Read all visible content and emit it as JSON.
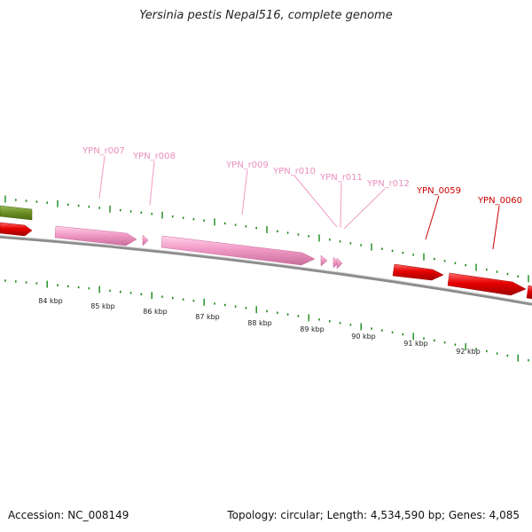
{
  "title": "Yersinia pestis Nepal516, complete genome",
  "footer": {
    "accession": "Accession: NC_008149",
    "stats": "Topology: circular; Length: 4,534,590 bp; Genes: 4,085"
  },
  "colors": {
    "rRNA": "#f29ac6",
    "rRNA_label": "#e98fbd",
    "gene": "#e60000",
    "gene_label": "#cc0000",
    "other": "#6b8e23",
    "tick": "#1a8a1a",
    "backbone": "#8c8c8c",
    "kbp_text": "#222222"
  },
  "scale": {
    "unit": "kbp",
    "labels": [
      "84 kbp",
      "85 kbp",
      "86 kbp",
      "87 kbp",
      "88 kbp",
      "89 kbp",
      "90 kbp",
      "91 kbp",
      "92 kbp"
    ]
  },
  "features": [
    {
      "kind": "other",
      "strand": "+"
    },
    {
      "kind": "gene",
      "strand": "+"
    },
    {
      "kind": "rRNA",
      "name": "YPN_r007",
      "strand": "+"
    },
    {
      "kind": "rRNA",
      "name": "YPN_r008",
      "strand": "+"
    },
    {
      "kind": "rRNA",
      "name": "YPN_r009",
      "strand": "+"
    },
    {
      "kind": "rRNA",
      "name": "YPN_r010",
      "strand": "+"
    },
    {
      "kind": "rRNA",
      "name": "YPN_r011",
      "strand": "+"
    },
    {
      "kind": "rRNA",
      "name": "YPN_r012",
      "strand": "+"
    },
    {
      "kind": "gene",
      "name": "YPN_0059",
      "strand": "+"
    },
    {
      "kind": "gene",
      "name": "YPN_0060",
      "strand": "+"
    },
    {
      "kind": "gene",
      "strand": "+"
    }
  ]
}
